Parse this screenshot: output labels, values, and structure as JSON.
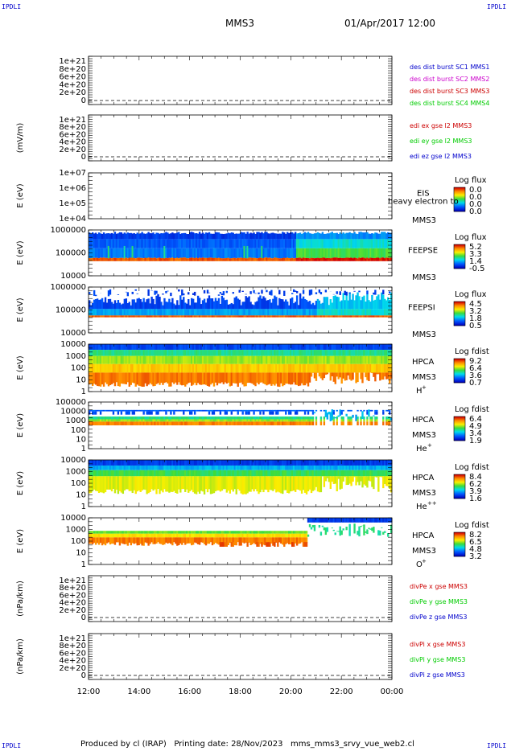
{
  "header": {
    "corner_tl": "IPDLI",
    "corner_tr": "IPDLI",
    "corner_bl": "IPDLI",
    "corner_br": "IPDLI",
    "mission": "MMS3",
    "datetime": "01/Apr/2017 12:00"
  },
  "footer": {
    "text": "Produced by cl (IRAP)   Printing date: 28/Nov/2023   mms_mms3_srvy_vue_web2.cl"
  },
  "time_axis": {
    "ticks": [
      "12:00",
      "14:00",
      "16:00",
      "18:00",
      "20:00",
      "22:00",
      "00:00"
    ]
  },
  "panels": [
    {
      "id": "dist",
      "type": "line",
      "ylabel": "",
      "yticks": [
        "1e+21",
        "8e+20",
        "6e+20",
        "4e+20",
        "2e+20",
        "0"
      ],
      "legend": [
        {
          "text": "des dist burst SC1 MMS1",
          "color": "#0000cc"
        },
        {
          "text": "des dist burst SC2 MMS2",
          "color": "#cc00cc"
        },
        {
          "text": "des dist burst SC3 MMS3",
          "color": "#cc0000"
        },
        {
          "text": "des dist burst SC4 MMS4",
          "color": "#00cc00"
        }
      ]
    },
    {
      "id": "edi",
      "type": "line",
      "ylabel": "(mV/m)",
      "yticks": [
        "1e+21",
        "8e+20",
        "6e+20",
        "4e+20",
        "2e+20",
        "0"
      ],
      "legend": [
        {
          "text": "edi ex gse l2 MMS3",
          "color": "#cc0000"
        },
        {
          "text": "edi ey gse l2 MMS3",
          "color": "#00cc00"
        },
        {
          "text": "edi ez gse l2 MMS3",
          "color": "#0000cc"
        }
      ]
    },
    {
      "id": "eis",
      "type": "spectrogram",
      "ylabel": "E (eV)",
      "yticks": [
        "1e+07",
        "1e+06",
        "1e+05",
        "1e+04"
      ],
      "instrument": "EIS",
      "sc": "MMS3",
      "note": "heavy electron to",
      "cb_title": "Log flux",
      "cb_ticks": [
        "0.0",
        "0.0",
        "0.0",
        "0.0"
      ],
      "filled": false
    },
    {
      "id": "feepse",
      "type": "spectrogram",
      "ylabel": "E (eV)",
      "yticks": [
        "1000000",
        "100000",
        "10000"
      ],
      "instrument": "FEEPSE",
      "sc": "MMS3",
      "cb_title": "Log flux",
      "cb_ticks": [
        "5.2",
        "3.3",
        "1.4",
        "-0.5"
      ],
      "filled": true,
      "style": "feepse"
    },
    {
      "id": "feepsi",
      "type": "spectrogram",
      "ylabel": "E (eV)",
      "yticks": [
        "1000000",
        "100000",
        "10000"
      ],
      "instrument": "FEEPSI",
      "sc": "MMS3",
      "cb_title": "Log flux",
      "cb_ticks": [
        "4.5",
        "3.2",
        "1.8",
        "0.5"
      ],
      "filled": true,
      "style": "feepsi"
    },
    {
      "id": "hpca_h",
      "type": "spectrogram",
      "ylabel": "E (eV)",
      "yticks": [
        "10000",
        "1000",
        "100",
        "10",
        "1"
      ],
      "instrument": "HPCA",
      "sc": "MMS3",
      "species": "H",
      "charge": "+",
      "cb_title": "Log fdist",
      "cb_ticks": [
        "9.2",
        "6.4",
        "3.6",
        "0.7"
      ],
      "filled": true,
      "style": "hpca_h"
    },
    {
      "id": "hpca_he",
      "type": "spectrogram",
      "ylabel": "E (eV)",
      "yticks": [
        "100000",
        "10000",
        "1000",
        "100",
        "10",
        "1"
      ],
      "instrument": "HPCA",
      "sc": "MMS3",
      "species": "He",
      "charge": "+",
      "cb_title": "Log fdist",
      "cb_ticks": [
        "6.4",
        "4.9",
        "3.4",
        "1.9"
      ],
      "filled": true,
      "style": "hpca_he"
    },
    {
      "id": "hpca_he2",
      "type": "spectrogram",
      "ylabel": "E (eV)",
      "yticks": [
        "10000",
        "1000",
        "100",
        "10",
        "1"
      ],
      "instrument": "HPCA",
      "sc": "MMS3",
      "species": "He",
      "charge": "++",
      "cb_title": "Log fdist",
      "cb_ticks": [
        "8.4",
        "6.2",
        "3.9",
        "1.6"
      ],
      "filled": true,
      "style": "hpca_he2"
    },
    {
      "id": "hpca_o",
      "type": "spectrogram",
      "ylabel": "E (eV)",
      "yticks": [
        "10000",
        "1000",
        "100",
        "10",
        "1"
      ],
      "instrument": "HPCA",
      "sc": "MMS3",
      "species": "O",
      "charge": "+",
      "cb_title": "Log fdist",
      "cb_ticks": [
        "8.2",
        "6.5",
        "4.8",
        "3.2"
      ],
      "filled": true,
      "style": "hpca_o"
    },
    {
      "id": "divpe",
      "type": "line",
      "ylabel": "(nPa/km)",
      "yticks": [
        "1e+21",
        "8e+20",
        "6e+20",
        "4e+20",
        "2e+20",
        "0"
      ],
      "legend": [
        {
          "text": "divPe x gse MMS3",
          "color": "#cc0000"
        },
        {
          "text": "divPe y gse MMS3",
          "color": "#00cc00"
        },
        {
          "text": "divPe z gse MMS3",
          "color": "#0000cc"
        }
      ]
    },
    {
      "id": "divpi",
      "type": "line",
      "ylabel": "(nPa/km)",
      "yticks": [
        "1e+21",
        "8e+20",
        "6e+20",
        "4e+20",
        "2e+20",
        "0"
      ],
      "legend": [
        {
          "text": "divPi x gse MMS3",
          "color": "#cc0000"
        },
        {
          "text": "divPi y gse MMS3",
          "color": "#00cc00"
        },
        {
          "text": "divPi z gse MMS3",
          "color": "#0000cc"
        }
      ]
    }
  ],
  "chart_data": {
    "type": "heatmap",
    "x_range": [
      "12:00",
      "00:00"
    ],
    "y_scale": "log",
    "colormap": "rainbow (blue low → red high)",
    "grid": false
  }
}
